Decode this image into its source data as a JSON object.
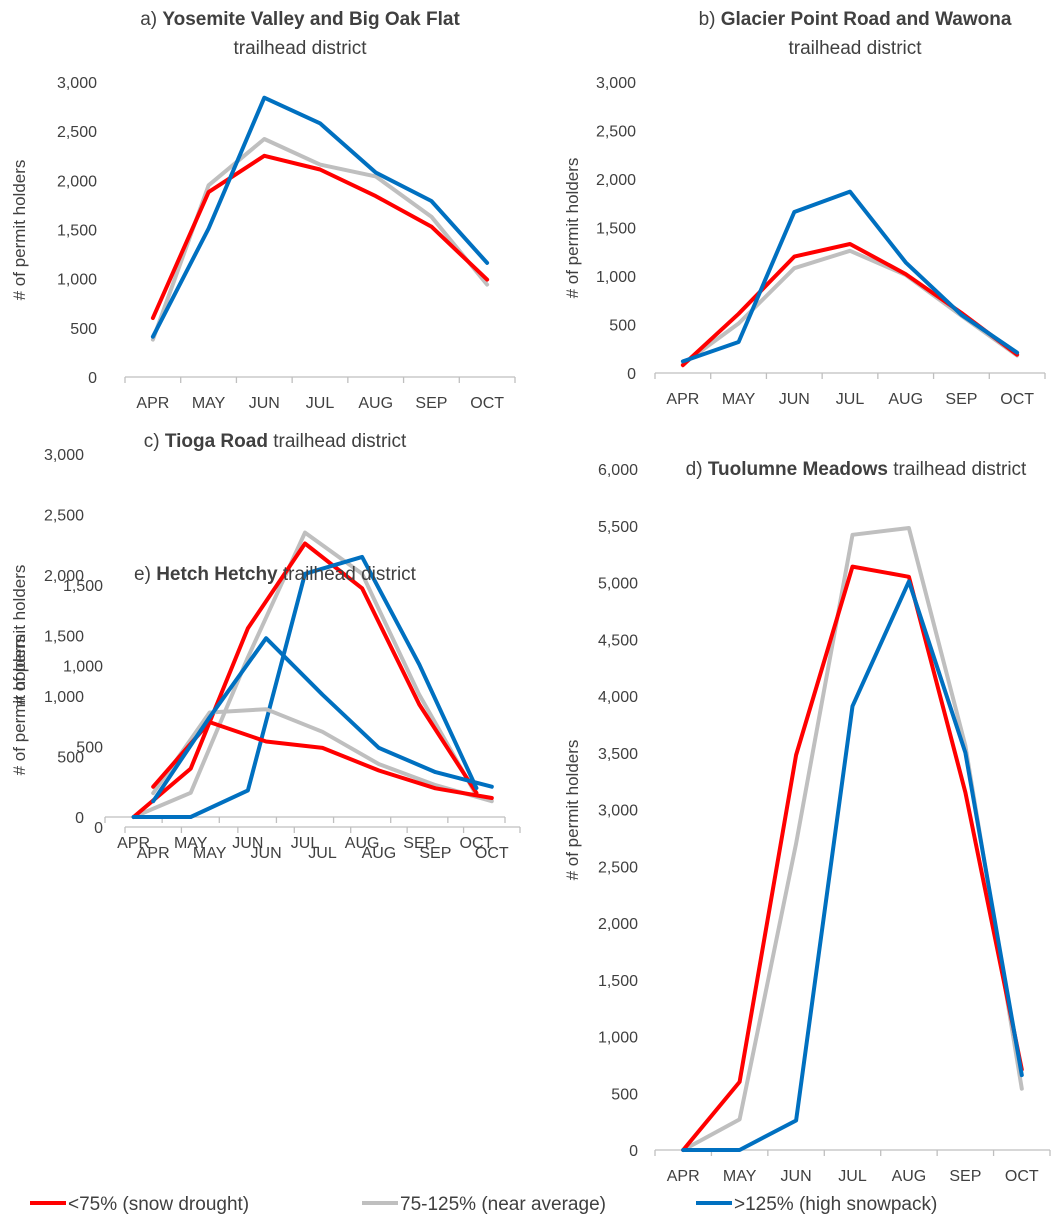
{
  "colors": {
    "snow_drought": "#ff0000",
    "near_average": "#bfbfbf",
    "high_snowpack": "#0070c0",
    "axis": "#bfbfbf",
    "text": "#404040"
  },
  "legend": [
    {
      "key": "snow_drought",
      "label": "<75% (snow drought)"
    },
    {
      "key": "near_average",
      "label": "75-125% (near average)"
    },
    {
      "key": "high_snowpack",
      "label": ">125% (high snowpack)"
    }
  ],
  "chart_data": [
    {
      "type": "line",
      "title_prefix": "a) ",
      "title_bold": "Yosemite Valley and Big Oak Flat",
      "title_suffix": "",
      "title_line2": "trailhead district",
      "ylabel": "# of permit holders",
      "categories": [
        "APR",
        "MAY",
        "JUN",
        "JUL",
        "AUG",
        "SEP",
        "OCT"
      ],
      "ylim": [
        0,
        3000
      ],
      "yticks": [
        0,
        500,
        1000,
        1500,
        2000,
        2500,
        3000
      ],
      "ytick_labels": [
        "0",
        "500",
        "1,000",
        "1,500",
        "2,000",
        "2,500",
        "3,000"
      ],
      "series": [
        {
          "key": "near_average",
          "values": [
            380,
            1950,
            2420,
            2160,
            2040,
            1630,
            940
          ]
        },
        {
          "key": "snow_drought",
          "values": [
            600,
            1880,
            2250,
            2110,
            1840,
            1530,
            990
          ]
        },
        {
          "key": "high_snowpack",
          "values": [
            410,
            1510,
            2840,
            2580,
            2080,
            1790,
            1160
          ]
        }
      ]
    },
    {
      "type": "line",
      "title_prefix": "b) ",
      "title_bold": "Glacier Point Road and Wawona",
      "title_suffix": "",
      "title_line2": "trailhead district",
      "ylabel": "# of permit holders",
      "categories": [
        "APR",
        "MAY",
        "JUN",
        "JUL",
        "AUG",
        "SEP",
        "OCT"
      ],
      "ylim": [
        0,
        3000
      ],
      "yticks": [
        0,
        500,
        1000,
        1500,
        2000,
        2500,
        3000
      ],
      "ytick_labels": [
        "0",
        "500",
        "1,000",
        "1,500",
        "2,000",
        "2,500",
        "3,000"
      ],
      "series": [
        {
          "key": "near_average",
          "values": [
            90,
            510,
            1080,
            1260,
            1010,
            590,
            180
          ]
        },
        {
          "key": "snow_drought",
          "values": [
            80,
            610,
            1200,
            1330,
            1020,
            620,
            190
          ]
        },
        {
          "key": "high_snowpack",
          "values": [
            120,
            320,
            1660,
            1870,
            1140,
            600,
            210
          ]
        }
      ]
    },
    {
      "type": "line",
      "title_prefix": "c) ",
      "title_bold": "Tioga Road",
      "title_suffix": " trailhead district",
      "title_line2": "",
      "ylabel": "# of permit holders",
      "categories": [
        "APR",
        "MAY",
        "JUN",
        "JUL",
        "AUG",
        "SEP",
        "OCT"
      ],
      "ylim": [
        0,
        3000
      ],
      "yticks": [
        0,
        500,
        1000,
        1500,
        2000,
        2500,
        3000
      ],
      "ytick_labels": [
        "0",
        "500",
        "1,000",
        "1,500",
        "2,000",
        "2,500",
        "3,000"
      ],
      "series": [
        {
          "key": "near_average",
          "values": [
            0,
            200,
            1320,
            2350,
            2010,
            1010,
            180
          ]
        },
        {
          "key": "snow_drought",
          "values": [
            0,
            400,
            1560,
            2260,
            1890,
            930,
            200
          ]
        },
        {
          "key": "high_snowpack",
          "values": [
            0,
            0,
            220,
            2010,
            2150,
            1260,
            240
          ]
        }
      ]
    },
    {
      "type": "line",
      "title_prefix": "d) ",
      "title_bold": "Tuolumne Meadows",
      "title_suffix": " trailhead district",
      "title_line2": "",
      "ylabel": "# of permit holders",
      "categories": [
        "APR",
        "MAY",
        "JUN",
        "JUL",
        "AUG",
        "SEP",
        "OCT"
      ],
      "ylim": [
        0,
        6000
      ],
      "yticks": [
        0,
        500,
        1000,
        1500,
        2000,
        2500,
        3000,
        3500,
        4000,
        4500,
        5000,
        5500,
        6000
      ],
      "ytick_labels": [
        "0",
        "500",
        "1,000",
        "1,500",
        "2,000",
        "2,500",
        "3,000",
        "3,500",
        "4,000",
        "4,500",
        "5,000",
        "5,500",
        "6,000"
      ],
      "series": [
        {
          "key": "near_average",
          "values": [
            0,
            270,
            2700,
            5420,
            5480,
            3560,
            540
          ]
        },
        {
          "key": "snow_drought",
          "values": [
            0,
            600,
            3480,
            5140,
            5050,
            3150,
            710
          ]
        },
        {
          "key": "high_snowpack",
          "values": [
            0,
            0,
            260,
            3910,
            5010,
            3500,
            660
          ]
        }
      ]
    },
    {
      "type": "line",
      "title_prefix": "e) ",
      "title_bold": "Hetch Hetchy",
      "title_suffix": " trailhead district",
      "title_line2": "",
      "ylabel": "# of permit holders",
      "categories": [
        "APR",
        "MAY",
        "JUN",
        "JUL",
        "AUG",
        "SEP",
        "OCT"
      ],
      "ylim": [
        0,
        1500
      ],
      "yticks": [
        0,
        500,
        1000,
        1500
      ],
      "ytick_labels": [
        "0",
        "500",
        "1,000",
        "1,500"
      ],
      "series": [
        {
          "key": "near_average",
          "values": [
            210,
            710,
            730,
            590,
            390,
            260,
            160
          ]
        },
        {
          "key": "snow_drought",
          "values": [
            250,
            650,
            530,
            490,
            350,
            240,
            180
          ]
        },
        {
          "key": "high_snowpack",
          "values": [
            160,
            680,
            1170,
            820,
            490,
            340,
            250
          ]
        }
      ]
    }
  ]
}
